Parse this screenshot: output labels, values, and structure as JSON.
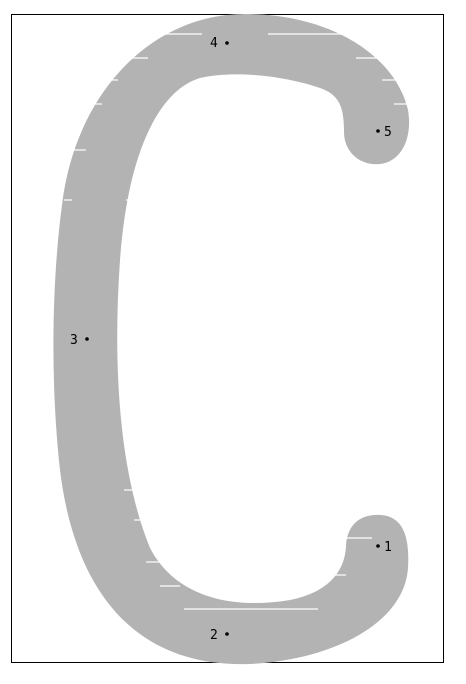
{
  "colors": {
    "background": "#ffffff",
    "border": "#000000",
    "glyph_fill": "#b3b3b3",
    "scan_lines": "#ffffff",
    "points": "#000000"
  },
  "glyph": {
    "character": "C"
  },
  "points": [
    {
      "id": "point-1",
      "label": "1"
    },
    {
      "id": "point-2",
      "label": "2"
    },
    {
      "id": "point-3",
      "label": "3"
    },
    {
      "id": "point-4",
      "label": "4"
    },
    {
      "id": "point-5",
      "label": "5"
    }
  ]
}
